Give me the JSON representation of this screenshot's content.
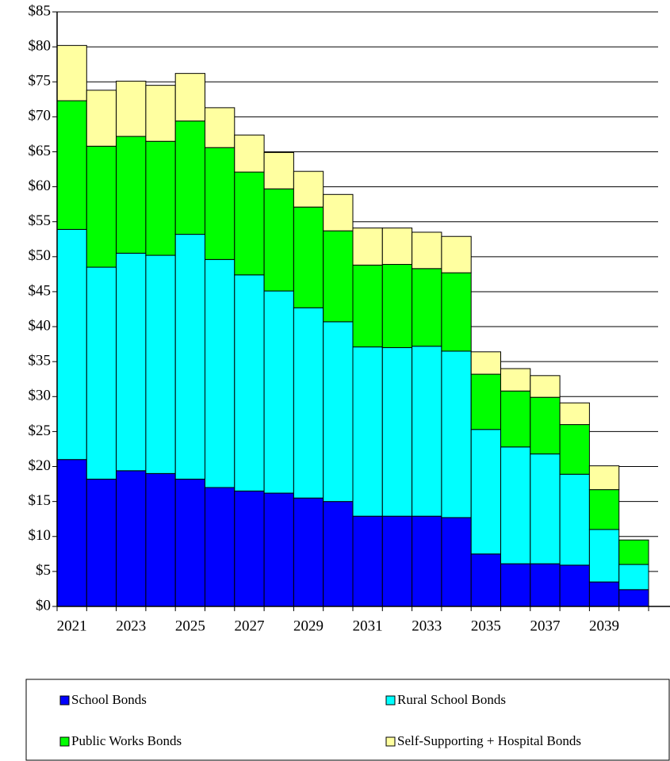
{
  "chart_data": {
    "type": "stacked-bar",
    "categories": [
      "2021",
      null,
      "2023",
      null,
      "2025",
      null,
      "2027",
      null,
      "2029",
      null,
      "2031",
      null,
      "2033",
      null,
      "2035",
      null,
      "2037",
      null,
      "2039",
      null
    ],
    "series": [
      {
        "name": "School Bonds",
        "color": "#0000ff",
        "values": [
          21.0,
          18.2,
          19.4,
          19.0,
          18.2,
          17.0,
          16.5,
          16.2,
          15.5,
          15.0,
          12.9,
          12.9,
          12.9,
          12.7,
          7.5,
          6.1,
          6.1,
          5.9,
          3.5,
          2.4
        ]
      },
      {
        "name": "Rural School Bonds",
        "color": "#00ffff",
        "values": [
          32.9,
          30.3,
          31.1,
          31.2,
          35.0,
          32.6,
          30.9,
          28.9,
          27.2,
          25.7,
          24.2,
          24.1,
          24.3,
          23.8,
          17.8,
          16.7,
          15.7,
          13.0,
          7.5,
          3.6
        ]
      },
      {
        "name": "Public Works Bonds",
        "color": "#00ff00",
        "values": [
          18.4,
          17.3,
          16.7,
          16.3,
          16.2,
          16.0,
          14.7,
          14.6,
          14.4,
          13.0,
          11.7,
          11.9,
          11.1,
          11.2,
          7.9,
          8.0,
          8.1,
          7.1,
          5.7,
          3.5
        ]
      },
      {
        "name": "Self-Supporting + Hospital Bonds",
        "color": "#ffffa0",
        "values": [
          7.9,
          8.0,
          7.9,
          8.0,
          6.8,
          5.7,
          5.3,
          5.2,
          5.1,
          5.2,
          5.3,
          5.2,
          5.2,
          5.2,
          3.2,
          3.2,
          3.1,
          3.1,
          3.4,
          0
        ]
      }
    ],
    "ylim": [
      0,
      85
    ],
    "yticks": [
      {
        "value": 0,
        "label": "$0"
      },
      {
        "value": 5,
        "label": "$5"
      },
      {
        "value": 10,
        "label": "$10"
      },
      {
        "value": 15,
        "label": "$15"
      },
      {
        "value": 20,
        "label": "$20"
      },
      {
        "value": 25,
        "label": "$25"
      },
      {
        "value": 30,
        "label": "$30"
      },
      {
        "value": 35,
        "label": "$35"
      },
      {
        "value": 40,
        "label": "$40"
      },
      {
        "value": 45,
        "label": "$45"
      },
      {
        "value": 50,
        "label": "$50"
      },
      {
        "value": 55,
        "label": "$55"
      },
      {
        "value": 60,
        "label": "$60"
      },
      {
        "value": 65,
        "label": "$65"
      },
      {
        "value": 70,
        "label": "$70"
      },
      {
        "value": 75,
        "label": "$75"
      },
      {
        "value": 80,
        "label": "$80"
      },
      {
        "value": 85,
        "label": "$85"
      }
    ],
    "grid": true,
    "legend": "bottom"
  }
}
